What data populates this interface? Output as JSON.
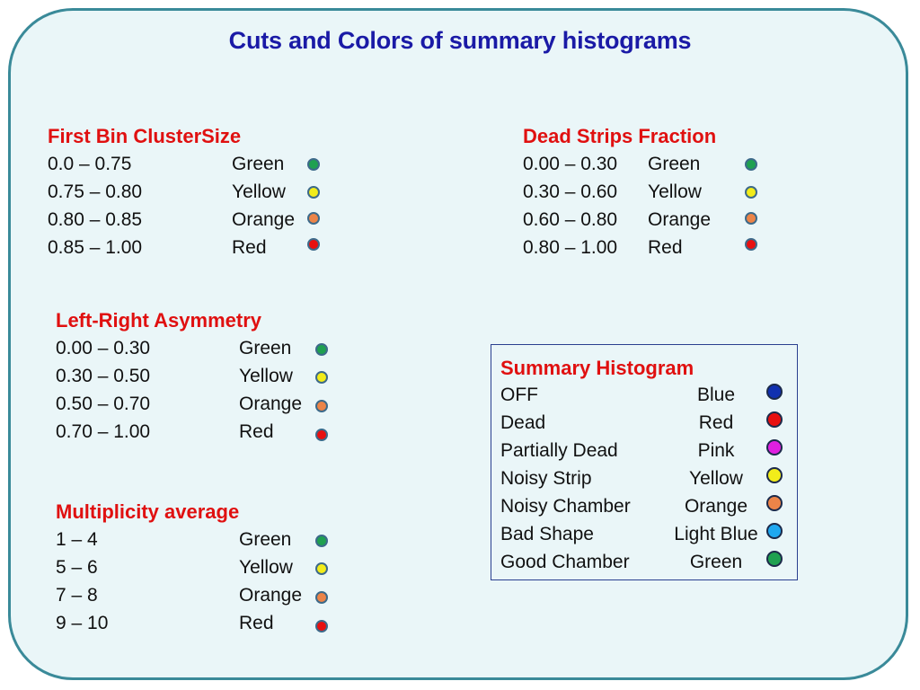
{
  "title": "Cuts and Colors of summary histograms",
  "colors": {
    "Green": "#1fa050",
    "Yellow": "#f2ec1a",
    "Orange": "#ec8448",
    "Red": "#e81010",
    "Blue": "#1030b0",
    "Pink": "#e020e0",
    "Light Blue": "#20a8f0"
  },
  "groups": [
    {
      "title": "First Bin ClusterSize",
      "rows": [
        {
          "range": "0.0 – 0.75",
          "color": "Green"
        },
        {
          "range": "0.75 – 0.80",
          "color": "Yellow"
        },
        {
          "range": "0.80 – 0.85",
          "color": "Orange"
        },
        {
          "range": "0.85 – 1.00",
          "color": "Red"
        }
      ]
    },
    {
      "title": "Dead Strips Fraction",
      "rows": [
        {
          "range": "0.00 – 0.30",
          "color": "Green"
        },
        {
          "range": "0.30 – 0.60",
          "color": "Yellow"
        },
        {
          "range": "0.60 – 0.80",
          "color": "Orange"
        },
        {
          "range": "0.80 – 1.00",
          "color": "Red"
        }
      ]
    },
    {
      "title": "Left-Right Asymmetry",
      "rows": [
        {
          "range": "0.00 – 0.30",
          "color": "Green"
        },
        {
          "range": "0.30 – 0.50",
          "color": "Yellow"
        },
        {
          "range": "0.50 – 0.70",
          "color": "Orange"
        },
        {
          "range": "0.70 – 1.00",
          "color": "Red"
        }
      ]
    },
    {
      "title": "Multiplicity average",
      "rows": [
        {
          "range": "1 – 4",
          "color": "Green"
        },
        {
          "range": "5 – 6",
          "color": "Yellow"
        },
        {
          "range": "7 – 8",
          "color": "Orange"
        },
        {
          "range": "9 – 10",
          "color": "Red"
        }
      ]
    }
  ],
  "summary": {
    "title": "Summary Histogram",
    "rows": [
      {
        "label": "OFF",
        "color": "Blue"
      },
      {
        "label": "Dead",
        "color": "Red"
      },
      {
        "label": "Partially Dead",
        "color": "Pink"
      },
      {
        "label": "Noisy Strip",
        "color": "Yellow"
      },
      {
        "label": "Noisy Chamber",
        "color": "Orange"
      },
      {
        "label": "Bad Shape",
        "color": "Light Blue"
      },
      {
        "label": "Good Chamber",
        "color": "Green"
      }
    ]
  }
}
